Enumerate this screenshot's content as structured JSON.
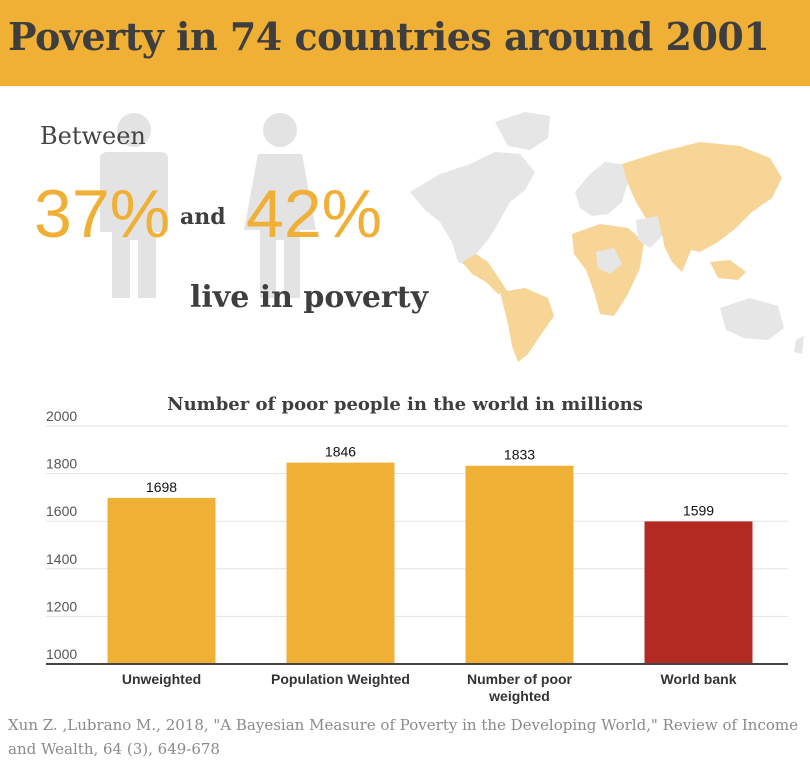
{
  "header": {
    "title": "Poverty in 74 countries around 2001"
  },
  "hero": {
    "between": "Between",
    "low_pct": "37%",
    "and": "and",
    "high_pct": "42%",
    "tagline": "live in poverty",
    "icons": [
      "man-icon",
      "woman-icon",
      "world-map"
    ]
  },
  "colors": {
    "accent": "#f0b035",
    "highlight": "#b22a22",
    "text": "#3e3e3e",
    "map_base": "#e6e6e6",
    "map_highlight": "#f7d596"
  },
  "chart_data": {
    "type": "bar",
    "title": "Number of poor people in the world in millions",
    "categories": [
      "Unweighted",
      "Population Weighted",
      "Number of poor\nweighted",
      "World bank"
    ],
    "values": [
      1698,
      1846,
      1833,
      1599
    ],
    "value_labels": [
      "1698",
      "1846",
      "1833",
      "1599"
    ],
    "bar_colors": [
      "#f0b035",
      "#f0b035",
      "#f0b035",
      "#b22a22"
    ],
    "yticks": [
      "2000",
      "1800",
      "1600",
      "1400",
      "1200",
      "1000"
    ],
    "ylim": [
      1000,
      2000
    ],
    "xlabel": "",
    "ylabel": "",
    "grid": true
  },
  "source": "Xun Z. ,Lubrano M., 2018, \"A Bayesian Measure of Poverty in the Developing World,\" Review of Income and Wealth, 64 (3), 649-678"
}
